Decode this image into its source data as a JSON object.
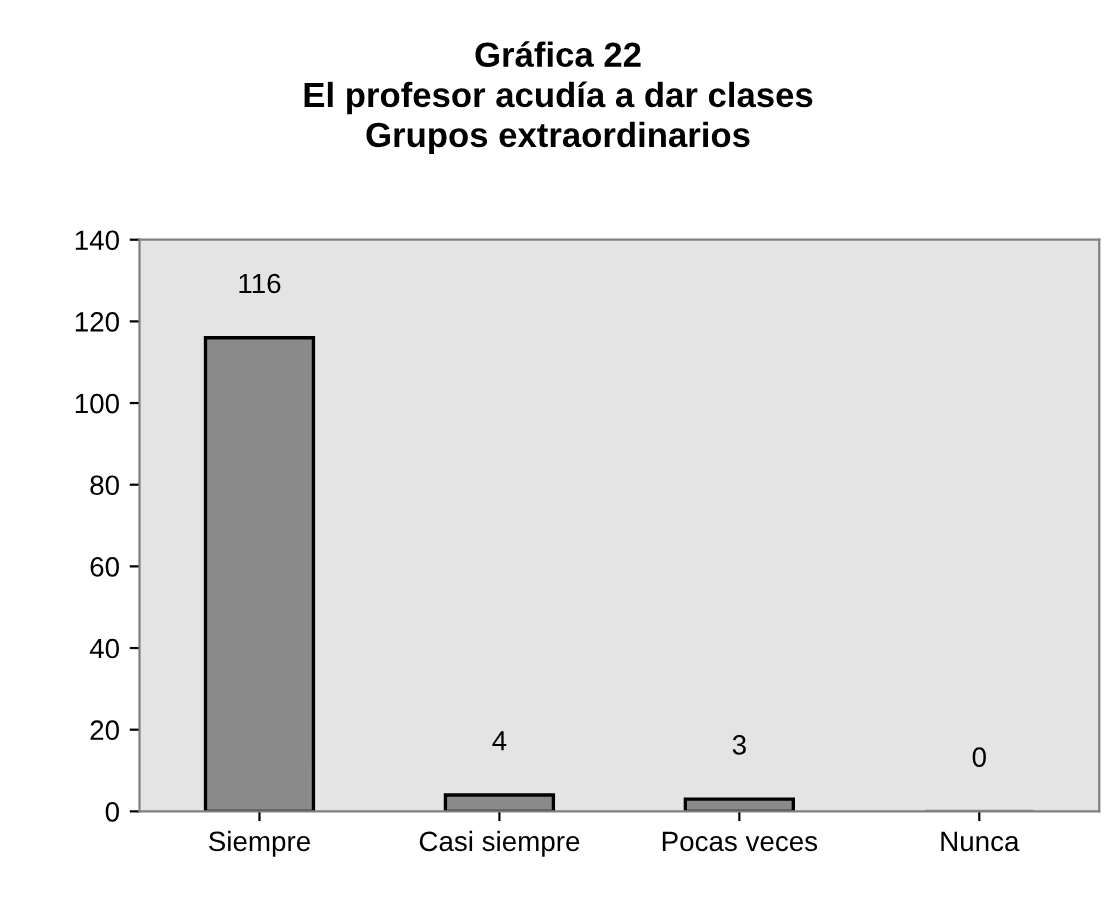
{
  "chart_data": {
    "type": "bar",
    "title": "Gráfica 22\nEl profesor acudía a dar clases\nGrupos extraordinarios",
    "categories": [
      "Siempre",
      "Casi siempre",
      "Pocas veces",
      "Nunca"
    ],
    "values": [
      116,
      4,
      3,
      0
    ],
    "color": "#8a8a8a",
    "ylim": [
      0,
      140
    ],
    "yticks": [
      0,
      20,
      40,
      60,
      80,
      100,
      120,
      140
    ],
    "grid": false,
    "data_labels": true
  }
}
